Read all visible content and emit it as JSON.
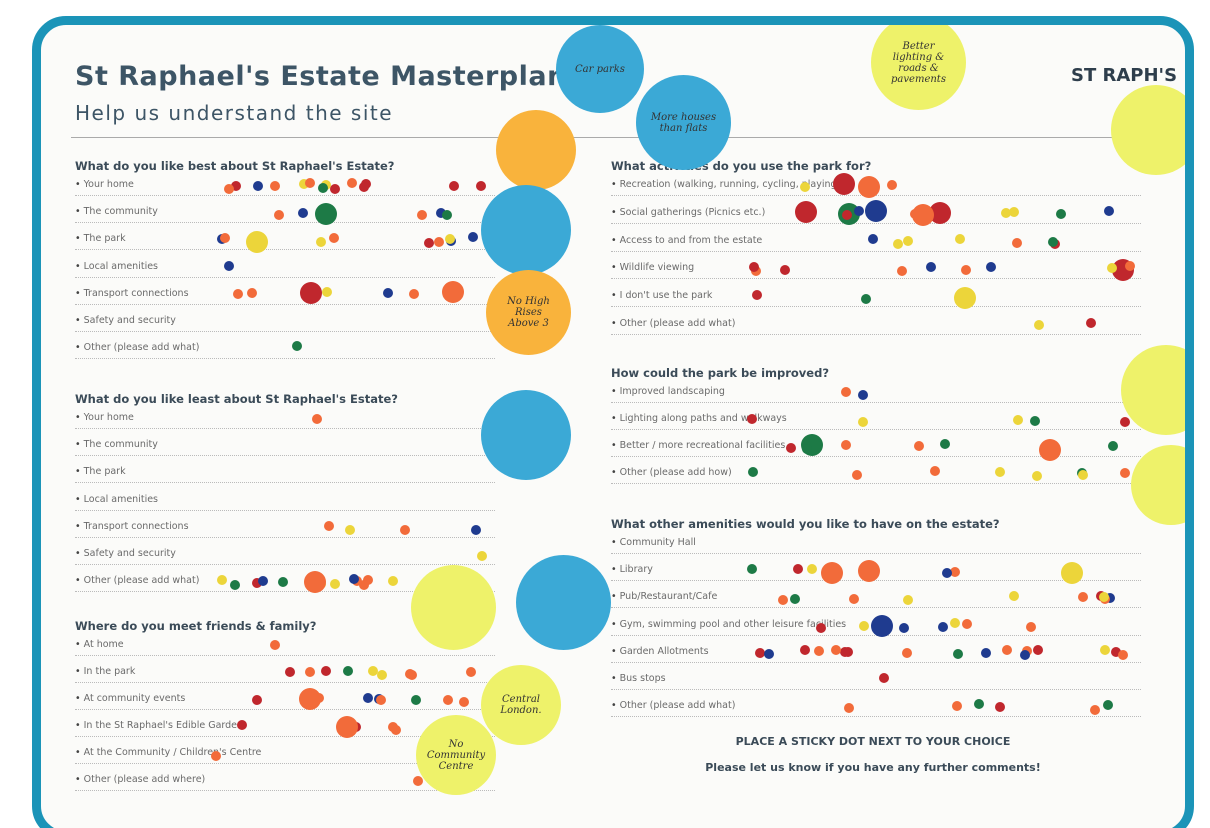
{
  "header": {
    "title": "St Raphael's Estate Masterplan",
    "subtitle": "Help us understand the site",
    "logo": "ST RAPH'S"
  },
  "sections": [
    {
      "question": "What do you like best about St Raphael's Estate?",
      "options": [
        "Your home",
        "The community",
        "The park",
        "Local amenities",
        "Transport connections",
        "Safety and security",
        "Other (please add what)"
      ]
    },
    {
      "question": "What do you like least about St Raphael's Estate?",
      "options": [
        "Your home",
        "The community",
        "The park",
        "Local amenities",
        "Transport connections",
        "Safety and security",
        "Other (please add what)"
      ]
    },
    {
      "question": "Where do you meet friends & family?",
      "options": [
        "At home",
        "In the park",
        "At community events",
        "In the St Raphael's Edible Garden",
        "At the Community / Children's Centre",
        "Other (please add where)"
      ]
    },
    {
      "question": "What activities do you use the park for?",
      "options": [
        "Recreation (walking, running, cycling, playing)",
        "Social gatherings (Picnics etc.)",
        "Access to and from the estate",
        "Wildlife viewing",
        "I don't use the park",
        "Other (please add what)"
      ]
    },
    {
      "question": "How could the park be improved?",
      "options": [
        "Improved landscaping",
        "Lighting along paths and walkways",
        "Better / more recreational facilities",
        "Other (please add how)"
      ]
    },
    {
      "question": "What other amenities would you like to have on the estate?",
      "options": [
        "Community Hall",
        "Library",
        "Pub/Restaurant/Cafe",
        "Gym, swimming pool and other leisure facilities",
        "Garden Allotments",
        "Bus stops",
        "Other (please add what)"
      ]
    }
  ],
  "footer": {
    "instruction": "PLACE A STICKY DOT NEXT TO YOUR CHOICE",
    "comments": "Please let us know if you have any further comments!"
  },
  "notes": [
    "Car parks",
    "More houses than flats",
    "Better lighting & roads & pavements",
    "No High Rises Above 3",
    "Central London.",
    "No Community Centre"
  ]
}
